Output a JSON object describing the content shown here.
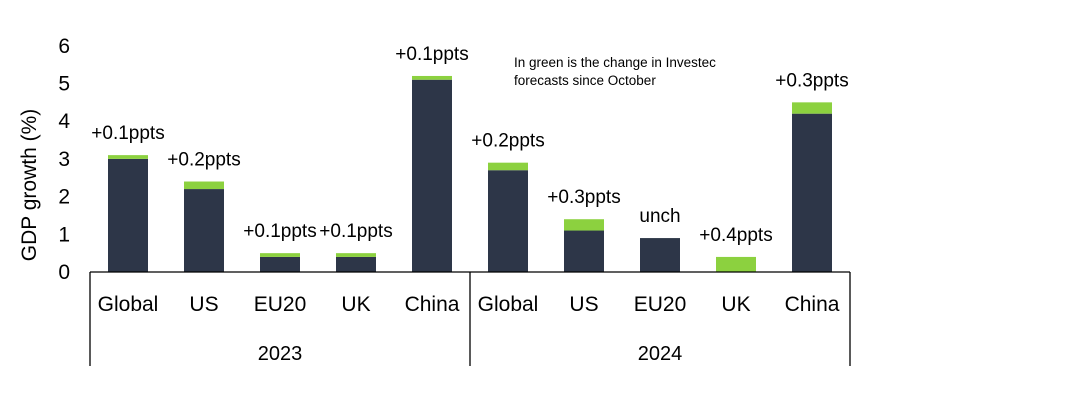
{
  "colors": {
    "base": "#2d3648",
    "change": "#8cd13f",
    "axis": "#000000"
  },
  "chart_data": {
    "type": "bar",
    "stacked": true,
    "ylabel": "GDP growth (%)",
    "ylim": [
      0,
      6
    ],
    "yticks": [
      "0",
      "1",
      "2",
      "3",
      "4",
      "5",
      "6"
    ],
    "grid": false,
    "groups": [
      "2023",
      "2024"
    ],
    "categories": [
      "Global",
      "US",
      "EU20",
      "UK",
      "China",
      "Global",
      "US",
      "EU20",
      "UK",
      "China"
    ],
    "series": [
      {
        "values": [
          3.0,
          2.2,
          0.4,
          0.4,
          5.1,
          2.7,
          1.1,
          0.9,
          0.0,
          4.2
        ]
      },
      {
        "values": [
          0.1,
          0.2,
          0.1,
          0.1,
          0.1,
          0.2,
          0.3,
          0.0,
          0.4,
          0.3
        ]
      }
    ],
    "data_labels": [
      "+0.1ppts",
      "+0.2ppts",
      "+0.1ppts",
      "+0.1ppts",
      "+0.1ppts",
      "+0.2ppts",
      "+0.3ppts",
      "unch",
      "+0.4ppts",
      "+0.3ppts"
    ],
    "annotation": [
      "In green is the change in Investec",
      "forecasts since October"
    ]
  }
}
